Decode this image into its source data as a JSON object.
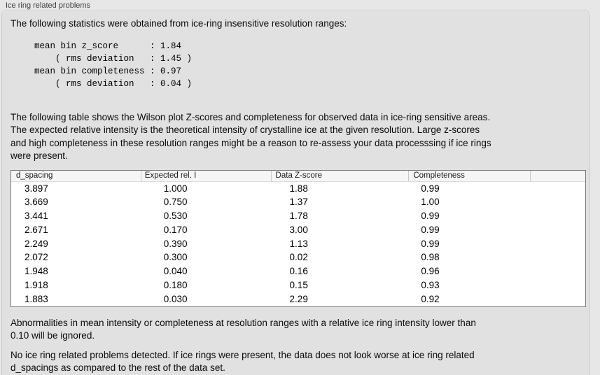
{
  "colors": {
    "page_bg": "#e7e7e7",
    "panel_bg": "#e1e1e1",
    "panel_border": "#c7c7c7",
    "table_border": "#787878",
    "table_header_bg": "#f6f6f6",
    "header_separator": "#c9c9c9",
    "table_body_bg": "#ffffff",
    "title_text": "#3e3e3e",
    "body_text": "#0a0a0a"
  },
  "group_box": {
    "title": "Ice ring related problems"
  },
  "intro": {
    "text": "The following statistics were obtained from ice-ring insensitive resolution ranges:"
  },
  "stats_block": {
    "text": "mean bin z_score      : 1.84\n    ( rms deviation   : 1.45 )\nmean bin completeness : 0.97\n    ( rms deviation   : 0.04 )",
    "mean_bin_z_score": "1.84",
    "z_score_rms_deviation": "1.45",
    "mean_bin_completeness": "0.97",
    "completeness_rms_deviation": "0.04"
  },
  "table_description": {
    "text": "The following table shows the Wilson plot Z-scores and completeness for observed data in ice-ring sensitive areas.\nThe expected relative intensity is the theoretical intensity of crystalline ice at the given resolution. Large z-scores\nand high completeness in these resolution ranges might be a reason to re-assess your data processsing if ice rings\nwere present."
  },
  "table": {
    "columns": [
      "d_spacing",
      "Expected rel. I",
      "Data Z-score",
      "Completeness",
      ""
    ],
    "rows": [
      [
        "3.897",
        "1.000",
        "1.88",
        "0.99",
        ""
      ],
      [
        "3.669",
        "0.750",
        "1.37",
        "1.00",
        ""
      ],
      [
        "3.441",
        "0.530",
        "1.78",
        "0.99",
        ""
      ],
      [
        "2.671",
        "0.170",
        "3.00",
        "0.99",
        ""
      ],
      [
        "2.249",
        "0.390",
        "1.13",
        "0.99",
        ""
      ],
      [
        "2.072",
        "0.300",
        "0.02",
        "0.98",
        ""
      ],
      [
        "1.948",
        "0.040",
        "0.16",
        "0.96",
        ""
      ],
      [
        "1.918",
        "0.180",
        "0.15",
        "0.93",
        ""
      ],
      [
        "1.883",
        "0.030",
        "2.29",
        "0.92",
        ""
      ]
    ]
  },
  "footer": {
    "ignore_note": "Abnormalities in mean intensity or completeness at resolution ranges with a relative ice ring intensity lower than\n0.10 will be ignored.",
    "conclusion": "No ice ring related problems detected. If ice rings were present, the data does not look worse at ice ring related\nd_spacings as compared to the rest of the data set."
  }
}
